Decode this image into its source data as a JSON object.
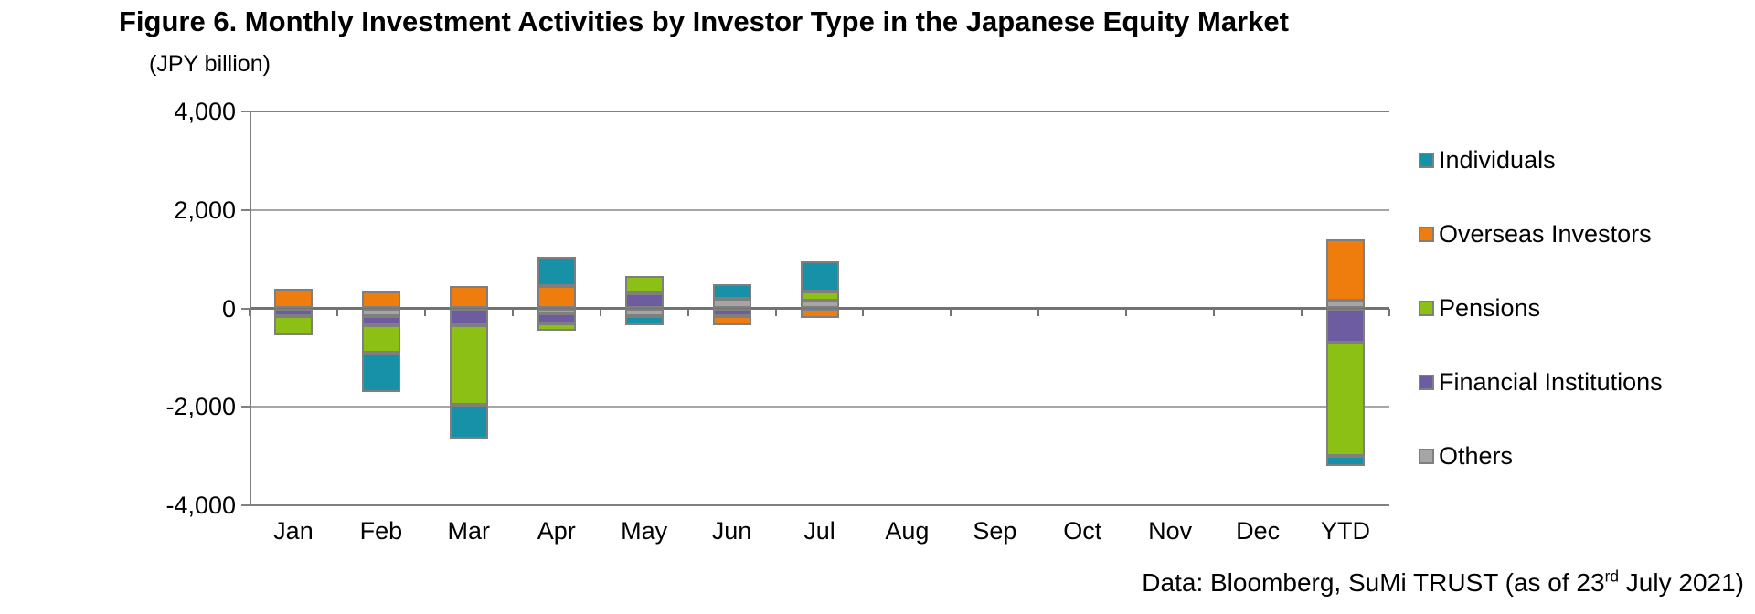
{
  "title": "Figure 6. Monthly Investment Activities by Investor Type in the Japanese Equity Market",
  "unit_label": "(JPY billion)",
  "footer": {
    "text_before_sup": "Data: Bloomberg, SuMi TRUST (as of 23",
    "sup": "rd",
    "text_after_sup": " July 2021)"
  },
  "chart_data": {
    "type": "bar",
    "stacked": true,
    "title": "Figure 6. Monthly Investment Activities by Investor Type in the Japanese Equity Market",
    "ylabel": "(JPY billion)",
    "categories": [
      "Jan",
      "Feb",
      "Mar",
      "Apr",
      "May",
      "Jun",
      "Jul",
      "Aug",
      "Sep",
      "Oct",
      "Nov",
      "Dec",
      "YTD"
    ],
    "series": [
      {
        "name": "Individuals",
        "color": "#1691a8",
        "values": [
          0,
          -800,
          -700,
          600,
          -200,
          300,
          600,
          0,
          0,
          0,
          0,
          0,
          -200
        ]
      },
      {
        "name": "Overseas Investors",
        "color": "#ee7d0e",
        "values": [
          400,
          350,
          450,
          450,
          0,
          -200,
          -200,
          0,
          0,
          0,
          0,
          0,
          1250
        ]
      },
      {
        "name": "Pensions",
        "color": "#8cc014",
        "values": [
          -400,
          -550,
          -1600,
          -150,
          350,
          0,
          200,
          0,
          0,
          0,
          0,
          0,
          -2300
        ]
      },
      {
        "name": "Financial Institutions",
        "color": "#6e5ca0",
        "values": [
          -150,
          -200,
          -350,
          -200,
          300,
          -150,
          0,
          0,
          0,
          0,
          0,
          0,
          -700
        ]
      },
      {
        "name": "Others",
        "color": "#a6a6a6",
        "values": [
          0,
          -150,
          0,
          -100,
          -150,
          200,
          150,
          0,
          0,
          0,
          0,
          0,
          150
        ]
      }
    ],
    "stack_order_from_axis": [
      "Others",
      "Financial Institutions",
      "Pensions",
      "Overseas Investors",
      "Individuals"
    ],
    "ylim": [
      -4000,
      4000
    ],
    "yticks": [
      {
        "value": 4000,
        "label": "4,000"
      },
      {
        "value": 2000,
        "label": "2,000"
      },
      {
        "value": 0,
        "label": "0"
      },
      {
        "value": -2000,
        "label": "-2,000"
      },
      {
        "value": -4000,
        "label": "-4,000"
      }
    ],
    "grid": true,
    "legend_position": "right"
  }
}
